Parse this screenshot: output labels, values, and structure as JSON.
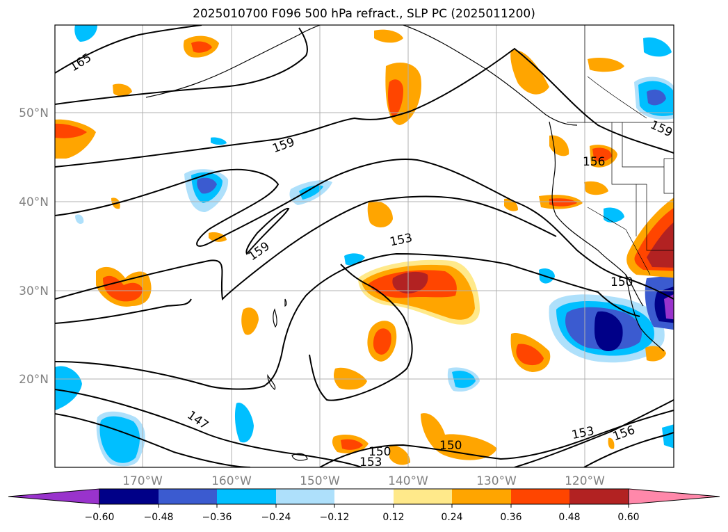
{
  "title": "2025010700 F096 500 hPa refract., SLP PC (2025011200)",
  "axes": {
    "lat_labels": [
      "50°N",
      "40°N",
      "30°N",
      "20°N"
    ],
    "lon_labels": [
      "170°W",
      "160°W",
      "150°W",
      "140°W",
      "130°W",
      "120°W"
    ]
  },
  "contour_labels": [
    "165",
    "159",
    "159",
    "153",
    "156",
    "159",
    "150",
    "147",
    "153",
    "150",
    "150",
    "153",
    "156"
  ],
  "colorbar": {
    "tick_labels": [
      "−0.60",
      "−0.48",
      "−0.36",
      "−0.24",
      "−0.12",
      "0.12",
      "0.24",
      "0.36",
      "0.48",
      "0.60"
    ],
    "colors": [
      "#9933cc",
      "#000088",
      "#3b5bd0",
      "#00bfff",
      "#aee0fb",
      "#ffffff",
      "#ffe98a",
      "#ffa500",
      "#ff4500",
      "#b22222",
      "#ff88aa"
    ]
  }
}
